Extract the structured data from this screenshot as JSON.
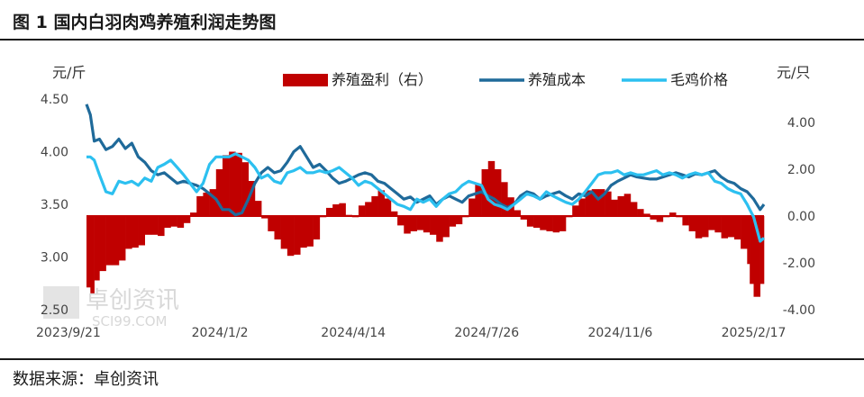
{
  "title": "图 1  国内白羽肉鸡养殖利润走势图",
  "source": "数据来源：卓创资讯",
  "watermark": {
    "main": "卓创资讯",
    "sub": "SCI99.COM"
  },
  "colors": {
    "profit": "#c00000",
    "cost": "#1f6a9a",
    "price": "#2cc0f0"
  },
  "chart_data": {
    "type": "line",
    "left_unit": "元/斤",
    "right_unit": "元/只",
    "left_ylim": [
      2.5,
      4.5
    ],
    "right_ylim": [
      -4.0,
      5.0
    ],
    "left_ticks": [
      "4.50",
      "4.00",
      "3.50",
      "3.00",
      "2.50"
    ],
    "right_ticks": [
      "4.00",
      "2.00",
      "0.00",
      "-2.00",
      "-4.00"
    ],
    "left_tick_values": [
      4.5,
      4.0,
      3.5,
      3.0,
      2.5
    ],
    "right_tick_values": [
      4.0,
      2.0,
      0.0,
      -2.0,
      -4.0
    ],
    "x_labels": [
      "2023/9/21",
      "2024/1/2",
      "2024/4/14",
      "2024/7/26",
      "2024/11/6",
      "2025/2/17"
    ],
    "x_label_days": [
      0,
      103,
      206,
      309,
      412,
      515
    ],
    "legend": [
      "养殖盈利（右）",
      "养殖成本",
      "毛鸡价格"
    ],
    "grid": false,
    "series": [
      {
        "name": "养殖盈利（右）",
        "axis": "right",
        "kind": "area",
        "days": [
          0,
          3,
          6,
          10,
          15,
          20,
          25,
          30,
          35,
          40,
          45,
          50,
          55,
          60,
          65,
          70,
          75,
          80,
          85,
          90,
          95,
          100,
          105,
          110,
          115,
          120,
          125,
          130,
          135,
          140,
          145,
          150,
          155,
          160,
          165,
          170,
          175,
          180,
          185,
          190,
          195,
          200,
          205,
          210,
          215,
          220,
          225,
          230,
          235,
          240,
          245,
          250,
          255,
          260,
          265,
          270,
          275,
          280,
          285,
          290,
          295,
          300,
          305,
          310,
          315,
          320,
          325,
          330,
          335,
          340,
          345,
          350,
          355,
          360,
          365,
          370,
          375,
          380,
          385,
          390,
          395,
          400,
          405,
          410,
          415,
          420,
          425,
          430,
          435,
          440,
          445,
          450,
          455,
          460,
          465,
          470,
          475,
          480,
          485,
          490,
          495,
          500,
          505,
          510,
          512,
          515,
          520,
          523
        ],
        "values": [
          -2.5,
          -3.6,
          -3.0,
          -2.5,
          -2.2,
          -2.0,
          -2.2,
          -1.6,
          -1.2,
          -1.5,
          -1.0,
          -0.6,
          -1.0,
          -0.7,
          -0.3,
          -0.6,
          -0.4,
          -0.2,
          0.5,
          1.2,
          0.8,
          1.5,
          2.5,
          2.7,
          2.8,
          2.6,
          2.0,
          1.0,
          0.3,
          -0.5,
          -0.8,
          -1.2,
          -1.6,
          -1.8,
          -1.5,
          -1.2,
          -1.4,
          -0.6,
          0.5,
          0.2,
          0.8,
          0.3,
          -0.2,
          0.1,
          0.8,
          0.4,
          1.3,
          0.9,
          0.6,
          -0.2,
          -0.6,
          -0.9,
          -0.4,
          -0.8,
          -0.6,
          -1.0,
          -1.2,
          -0.6,
          -0.3,
          -0.4,
          0.3,
          1.2,
          1.5,
          2.5,
          2.2,
          1.8,
          1.1,
          0.5,
          0.0,
          -0.3,
          -0.6,
          -0.4,
          -0.8,
          -0.5,
          -0.9,
          -0.4,
          0.3,
          0.6,
          0.9,
          1.3,
          1.0,
          1.3,
          0.8,
          0.6,
          1.1,
          0.8,
          0.4,
          0.2,
          0.0,
          -0.3,
          -0.2,
          0.1,
          0.2,
          -0.3,
          -0.5,
          -0.8,
          -1.1,
          -0.7,
          -0.5,
          -0.9,
          -1.0,
          -0.8,
          -1.2,
          -1.6,
          -2.5,
          -3.3,
          -3.6,
          -2.2
        ]
      },
      {
        "name": "养殖成本",
        "axis": "left",
        "kind": "line",
        "days": [
          0,
          3,
          6,
          10,
          15,
          20,
          25,
          30,
          35,
          40,
          45,
          50,
          55,
          60,
          65,
          70,
          75,
          80,
          85,
          90,
          95,
          100,
          105,
          110,
          115,
          120,
          125,
          130,
          135,
          140,
          145,
          150,
          155,
          160,
          165,
          170,
          175,
          180,
          185,
          190,
          195,
          200,
          205,
          210,
          215,
          220,
          225,
          230,
          235,
          240,
          245,
          250,
          255,
          260,
          265,
          270,
          275,
          280,
          285,
          290,
          295,
          300,
          305,
          310,
          315,
          320,
          325,
          330,
          335,
          340,
          345,
          350,
          355,
          360,
          365,
          370,
          375,
          380,
          385,
          390,
          395,
          400,
          405,
          410,
          415,
          420,
          425,
          430,
          435,
          440,
          445,
          450,
          455,
          460,
          465,
          470,
          475,
          480,
          485,
          490,
          495,
          500,
          505,
          510,
          515,
          520,
          523
        ],
        "values": [
          4.45,
          4.35,
          4.1,
          4.12,
          4.02,
          4.05,
          4.12,
          4.03,
          4.08,
          3.95,
          3.9,
          3.82,
          3.78,
          3.8,
          3.75,
          3.7,
          3.72,
          3.7,
          3.68,
          3.65,
          3.6,
          3.55,
          3.45,
          3.45,
          3.4,
          3.42,
          3.55,
          3.7,
          3.8,
          3.85,
          3.8,
          3.82,
          3.9,
          4.0,
          4.05,
          3.95,
          3.85,
          3.88,
          3.82,
          3.75,
          3.7,
          3.72,
          3.75,
          3.78,
          3.8,
          3.78,
          3.72,
          3.7,
          3.65,
          3.6,
          3.55,
          3.57,
          3.52,
          3.55,
          3.58,
          3.5,
          3.55,
          3.58,
          3.55,
          3.52,
          3.58,
          3.6,
          3.62,
          3.58,
          3.55,
          3.5,
          3.47,
          3.5,
          3.58,
          3.62,
          3.6,
          3.55,
          3.58,
          3.6,
          3.62,
          3.58,
          3.55,
          3.6,
          3.58,
          3.62,
          3.55,
          3.6,
          3.68,
          3.72,
          3.75,
          3.78,
          3.76,
          3.75,
          3.74,
          3.74,
          3.76,
          3.78,
          3.8,
          3.78,
          3.76,
          3.79,
          3.78,
          3.8,
          3.82,
          3.76,
          3.72,
          3.7,
          3.65,
          3.62,
          3.55,
          3.45,
          3.5
        ]
      },
      {
        "name": "毛鸡价格",
        "axis": "left",
        "kind": "line",
        "days": [
          0,
          3,
          6,
          10,
          15,
          20,
          25,
          30,
          35,
          40,
          45,
          50,
          55,
          60,
          65,
          70,
          75,
          80,
          85,
          90,
          95,
          100,
          105,
          110,
          115,
          120,
          125,
          130,
          135,
          140,
          145,
          150,
          155,
          160,
          165,
          170,
          175,
          180,
          185,
          190,
          195,
          200,
          205,
          210,
          215,
          220,
          225,
          230,
          235,
          240,
          245,
          250,
          255,
          260,
          265,
          270,
          275,
          280,
          285,
          290,
          295,
          300,
          305,
          310,
          315,
          320,
          325,
          330,
          335,
          340,
          345,
          350,
          355,
          360,
          365,
          370,
          375,
          380,
          385,
          390,
          395,
          400,
          405,
          410,
          415,
          420,
          425,
          430,
          435,
          440,
          445,
          450,
          455,
          460,
          465,
          470,
          475,
          480,
          485,
          490,
          495,
          500,
          505,
          510,
          512,
          515,
          520,
          523
        ],
        "values": [
          3.95,
          3.95,
          3.92,
          3.78,
          3.62,
          3.6,
          3.72,
          3.7,
          3.72,
          3.68,
          3.75,
          3.72,
          3.85,
          3.88,
          3.92,
          3.85,
          3.78,
          3.7,
          3.62,
          3.7,
          3.88,
          3.95,
          3.95,
          3.95,
          3.98,
          3.95,
          3.92,
          3.85,
          3.75,
          3.78,
          3.72,
          3.7,
          3.8,
          3.82,
          3.85,
          3.8,
          3.8,
          3.82,
          3.8,
          3.82,
          3.85,
          3.8,
          3.75,
          3.68,
          3.72,
          3.7,
          3.65,
          3.6,
          3.55,
          3.5,
          3.48,
          3.45,
          3.55,
          3.52,
          3.55,
          3.48,
          3.55,
          3.6,
          3.62,
          3.68,
          3.72,
          3.7,
          3.68,
          3.55,
          3.5,
          3.48,
          3.45,
          3.5,
          3.55,
          3.6,
          3.58,
          3.55,
          3.62,
          3.58,
          3.55,
          3.52,
          3.5,
          3.55,
          3.62,
          3.7,
          3.78,
          3.8,
          3.8,
          3.82,
          3.78,
          3.8,
          3.78,
          3.78,
          3.8,
          3.82,
          3.78,
          3.8,
          3.78,
          3.75,
          3.78,
          3.8,
          3.78,
          3.8,
          3.72,
          3.7,
          3.65,
          3.62,
          3.6,
          3.5,
          3.45,
          3.38,
          3.15,
          3.18
        ]
      }
    ]
  }
}
